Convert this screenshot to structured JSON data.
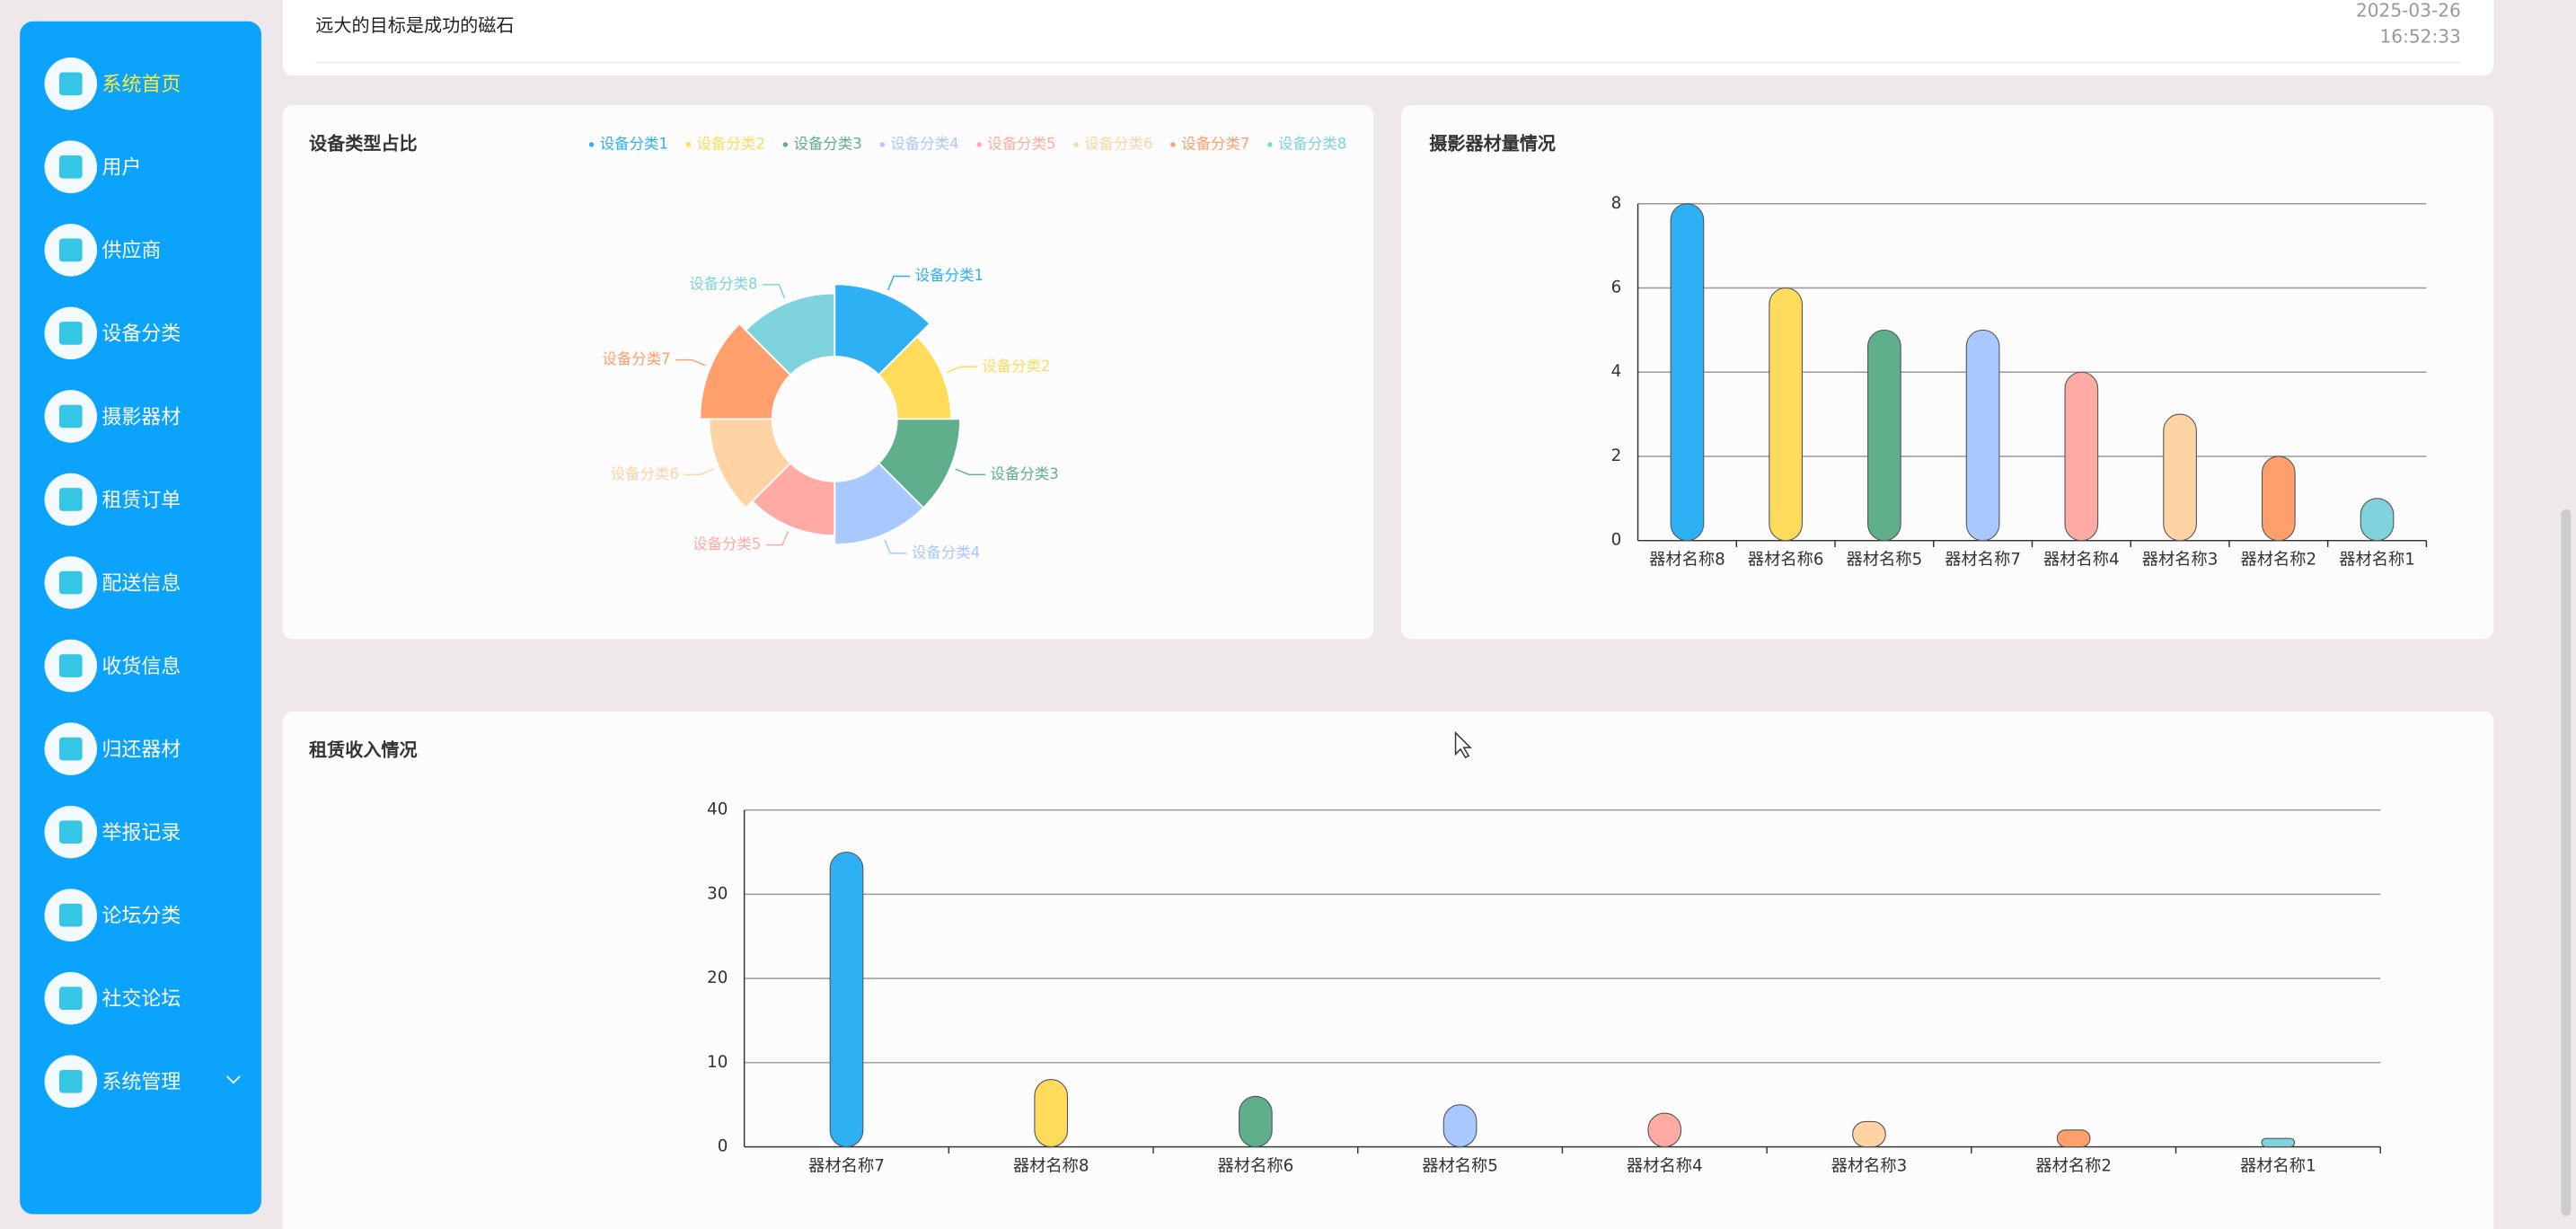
{
  "sidebar": {
    "items": [
      "系统首页",
      "用户",
      "供应商",
      "设备分类",
      "摄影器材",
      "租赁订单",
      "配送信息",
      "收货信息",
      "归还器材",
      "举报记录",
      "论坛分类",
      "社交论坛",
      "系统管理"
    ]
  },
  "header": {
    "motto": "远大的目标是成功的磁石",
    "date": "2025-03-26",
    "time": "16:52:33"
  },
  "chart_data": [
    {
      "type": "pie",
      "title": "设备类型占比",
      "rose": true,
      "categories": [
        "设备分类1",
        "设备分类2",
        "设备分类3",
        "设备分类4",
        "设备分类5",
        "设备分类6",
        "设备分类7",
        "设备分类8"
      ],
      "values": [
        8,
        6,
        7,
        7,
        6,
        7,
        8,
        7
      ],
      "colors": [
        "#2eb0f5",
        "#ffdb5c",
        "#5fae8c",
        "#a8c8ff",
        "#ffaaa3",
        "#ffd3a3",
        "#ff9f6b",
        "#7ed3dc"
      ]
    },
    {
      "type": "bar",
      "title": "摄影器材量情况",
      "categories": [
        "器材名称8",
        "器材名称6",
        "器材名称5",
        "器材名称7",
        "器材名称4",
        "器材名称3",
        "器材名称2",
        "器材名称1"
      ],
      "values": [
        8,
        6,
        5,
        5,
        4,
        3,
        2,
        1
      ],
      "colors": [
        "#2eb0f5",
        "#ffdb5c",
        "#5fae8c",
        "#a8c8ff",
        "#ffaaa3",
        "#ffd3a3",
        "#ff9f6b",
        "#7ed3dc"
      ],
      "ylim": [
        0,
        8
      ],
      "yticks": [
        0,
        2,
        4,
        6,
        8
      ],
      "grid": true
    },
    {
      "type": "bar",
      "title": "租赁收入情况",
      "categories": [
        "器材名称7",
        "器材名称8",
        "器材名称6",
        "器材名称5",
        "器材名称4",
        "器材名称3",
        "器材名称2",
        "器材名称1"
      ],
      "values": [
        35,
        8,
        6,
        5,
        4,
        3,
        2,
        1
      ],
      "colors": [
        "#2eb0f5",
        "#ffdb5c",
        "#5fae8c",
        "#a8c8ff",
        "#ffaaa3",
        "#ffd3a3",
        "#ff9f6b",
        "#7ed3dc"
      ],
      "ylim": [
        0,
        40
      ],
      "yticks": [
        0,
        10,
        20,
        30,
        40
      ],
      "grid": true
    }
  ]
}
